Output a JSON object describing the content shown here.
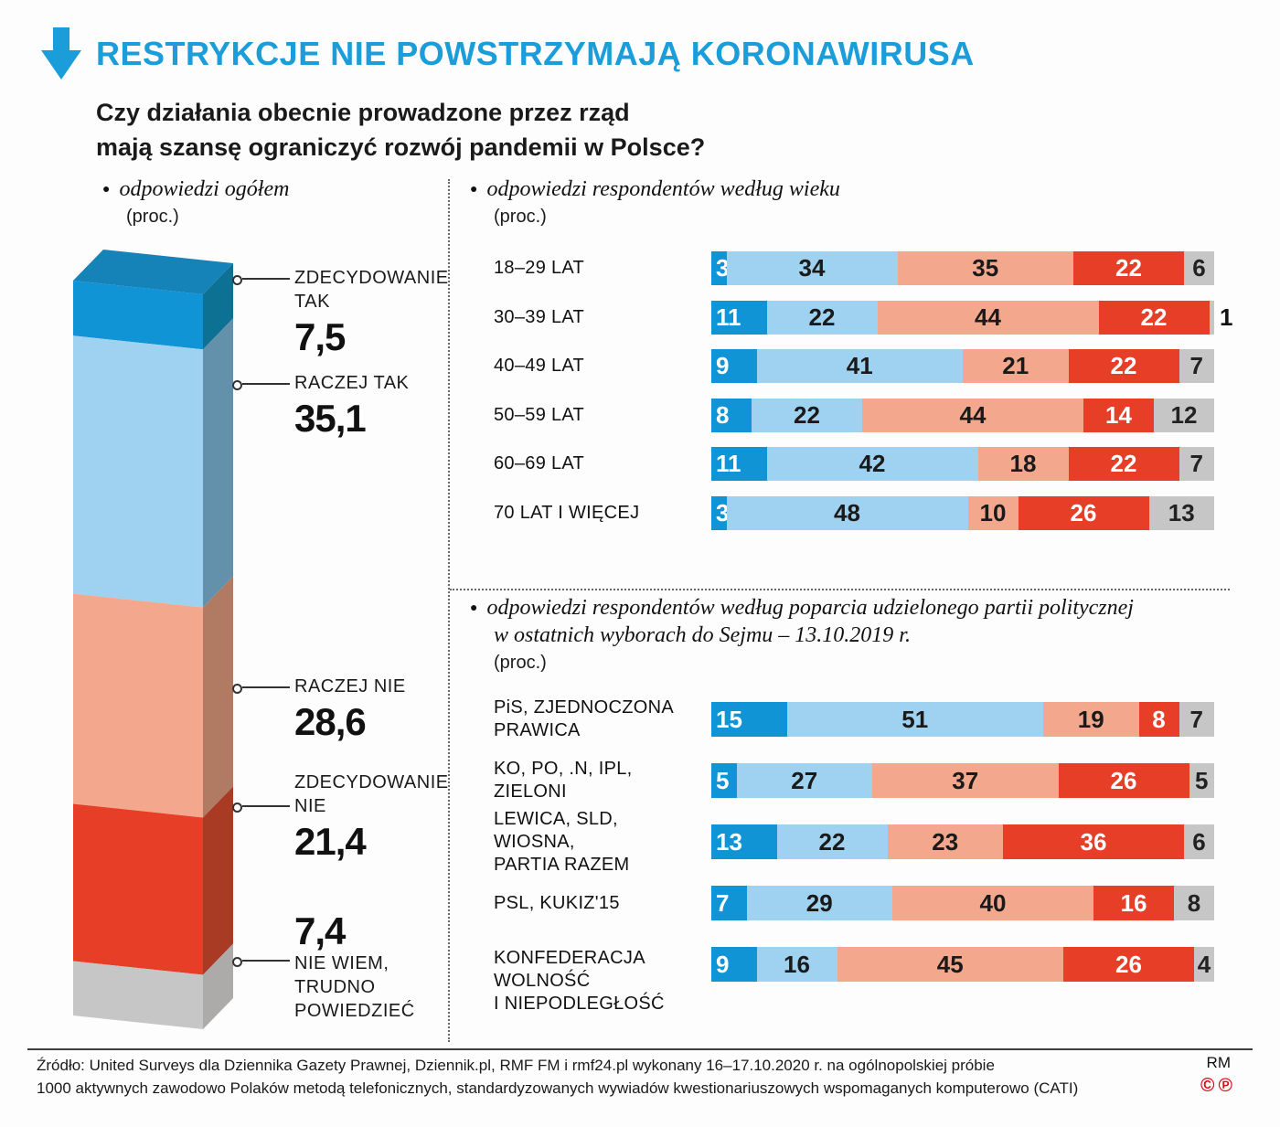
{
  "ui": {
    "bullet": "●"
  },
  "header": {
    "title": "RESTRYKCJE NIE POWSTRZYMAJĄ KORONAWIRUSA"
  },
  "question": {
    "line1": "Czy działania obecnie prowadzone przez rząd",
    "line2": "mają szansę ograniczyć rozwój pandemii w Polsce?"
  },
  "palette": {
    "accent_blue": "#1b9dd9",
    "segment_colors": [
      "#1094d6",
      "#9ed2f0",
      "#f3a88d",
      "#e73e28",
      "#c6c6c6"
    ],
    "segment_text_colors": [
      "#ffffff",
      "#1a1a1a",
      "#1a1a1a",
      "#ffffff",
      "#222222"
    ],
    "column_side_colors": [
      "#0d7193",
      "#6390ab",
      "#b17a63",
      "#a93a23",
      "#adaaaa"
    ],
    "column_top_color": "#1583b8",
    "footer_mark_red": "#e30613"
  },
  "chart_data": [
    {
      "id": "overall",
      "type": "bar",
      "variant": "3d-stacked-column",
      "title": "odpowiedzi ogółem",
      "unit": "(proc.)",
      "grid": false,
      "legend_position": "none",
      "categories": [
        "ZDECYDOWANIE TAK",
        "RACZEJ TAK",
        "RACZEJ NIE",
        "ZDECYDOWANIE NIE",
        "NIE WIEM, TRUDNO POWIEDZIEĆ"
      ],
      "values": [
        7.5,
        35.1,
        28.6,
        21.4,
        7.4
      ],
      "value_labels": [
        "7,5",
        "35,1",
        "28,6",
        "21,4",
        "7,4"
      ],
      "annotations": [
        {
          "lines": [
            "ZDECYDOWANIE",
            "TAK"
          ],
          "value": "7,5"
        },
        {
          "lines": [
            "RACZEJ TAK"
          ],
          "value": "35,1"
        },
        {
          "lines": [
            "RACZEJ NIE"
          ],
          "value": "28,6"
        },
        {
          "lines": [
            "ZDECYDOWANIE",
            "NIE"
          ],
          "value": "21,4"
        },
        {
          "lines": [
            "NIE WIEM,",
            "TRUDNO",
            "POWIEDZIEĆ"
          ],
          "value": "7,4",
          "value_first": true
        }
      ]
    },
    {
      "id": "by_age",
      "type": "bar",
      "variant": "horizontal-stacked",
      "title": "odpowiedzi respondentów według wieku",
      "unit": "(proc.)",
      "grid": false,
      "legend_position": "none",
      "xlim": [
        0,
        100
      ],
      "stack_categories": [
        "zdecydowanie tak",
        "raczej tak",
        "raczej nie",
        "zdecydowanie nie",
        "nie wiem, trudno powiedzieć"
      ],
      "rows": [
        {
          "label": "18–29 LAT",
          "values": [
            3,
            34,
            35,
            22,
            6
          ]
        },
        {
          "label": "30–39 LAT",
          "values": [
            11,
            22,
            44,
            22,
            1
          ]
        },
        {
          "label": "40–49 LAT",
          "values": [
            9,
            41,
            21,
            22,
            7
          ]
        },
        {
          "label": "50–59 LAT",
          "values": [
            8,
            22,
            44,
            14,
            12
          ]
        },
        {
          "label": "60–69 LAT",
          "values": [
            11,
            42,
            18,
            22,
            7
          ]
        },
        {
          "label": "70 LAT I WIĘCEJ",
          "values": [
            3,
            48,
            10,
            26,
            13
          ]
        }
      ]
    },
    {
      "id": "by_party",
      "type": "bar",
      "variant": "horizontal-stacked",
      "title_line1": "odpowiedzi respondentów według poparcia udzielonego partii politycznej",
      "title_line2": "w ostatnich wyborach do Sejmu – 13.10.2019 r.",
      "unit": "(proc.)",
      "grid": false,
      "legend_position": "none",
      "xlim": [
        0,
        100
      ],
      "stack_categories": [
        "zdecydowanie tak",
        "raczej tak",
        "raczej nie",
        "zdecydowanie nie",
        "nie wiem, trudno powiedzieć"
      ],
      "rows": [
        {
          "label_lines": [
            "PiS, ZJEDNOCZONA",
            "PRAWICA"
          ],
          "values": [
            15,
            51,
            19,
            8,
            7
          ]
        },
        {
          "label_lines": [
            "KO, PO, .N, IPL,",
            "ZIELONI"
          ],
          "values": [
            5,
            27,
            37,
            26,
            5
          ]
        },
        {
          "label_lines": [
            "LEWICA, SLD, WIOSNA,",
            "PARTIA RAZEM"
          ],
          "values": [
            13,
            22,
            23,
            36,
            6
          ]
        },
        {
          "label_lines": [
            "PSL, KUKIZ'15"
          ],
          "values": [
            7,
            29,
            40,
            16,
            8
          ]
        },
        {
          "label_lines": [
            "KONFEDERACJA",
            "WOLNOŚĆ",
            "I NIEPODLEGŁOŚĆ"
          ],
          "values": [
            9,
            16,
            45,
            26,
            4
          ]
        }
      ]
    }
  ],
  "footer": {
    "line1": "Źródło: United Surveys dla Dziennika Gazety Prawnej, Dziennik.pl, RMF FM i rmf24.pl wykonany 16–17.10.2020 r. na ogólnopolskiej próbie",
    "line2": "1000 aktywnych zawodowo Polaków metodą telefonicznych, standardyzowanych wywiadów kwestionariuszowych wspomaganych komputerowo (CATI)",
    "credit": "RM",
    "marks": "©℗"
  }
}
